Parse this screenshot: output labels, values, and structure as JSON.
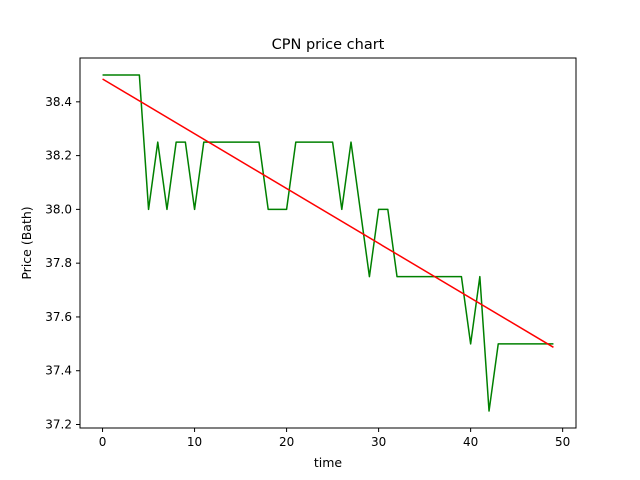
{
  "chart_data": {
    "type": "line",
    "title": "CPN price chart",
    "xlabel": "time",
    "ylabel": "Price (Bath)",
    "xlim": [
      -2.45,
      51.45
    ],
    "ylim": [
      37.187,
      38.563
    ],
    "xticks": [
      0,
      10,
      20,
      30,
      40,
      50
    ],
    "yticks": [
      37.2,
      37.4,
      37.6,
      37.8,
      38.0,
      38.2,
      38.4
    ],
    "grid": false,
    "legend": "none",
    "series": [
      {
        "color": "#008000",
        "x": [
          0,
          1,
          2,
          3,
          4,
          5,
          6,
          7,
          8,
          9,
          10,
          11,
          12,
          13,
          14,
          15,
          16,
          17,
          18,
          19,
          20,
          21,
          22,
          23,
          24,
          25,
          26,
          27,
          28,
          29,
          30,
          31,
          32,
          33,
          34,
          35,
          36,
          37,
          38,
          39,
          40,
          41,
          42,
          43,
          44,
          45,
          46,
          47,
          48,
          49
        ],
        "y": [
          38.5,
          38.5,
          38.5,
          38.5,
          38.5,
          38.0,
          38.25,
          38.0,
          38.25,
          38.25,
          38.0,
          38.25,
          38.25,
          38.25,
          38.25,
          38.25,
          38.25,
          38.25,
          38.0,
          38.0,
          38.0,
          38.25,
          38.25,
          38.25,
          38.25,
          38.25,
          38.0,
          38.25,
          38.0,
          37.75,
          38.0,
          38.0,
          37.75,
          37.75,
          37.75,
          37.75,
          37.75,
          37.75,
          37.75,
          37.75,
          37.5,
          37.75,
          37.25,
          37.5,
          37.5,
          37.5,
          37.5,
          37.5,
          37.5,
          37.5
        ]
      },
      {
        "color": "#ff0000",
        "x": [
          0,
          49
        ],
        "y": [
          38.485,
          37.487
        ]
      }
    ]
  }
}
